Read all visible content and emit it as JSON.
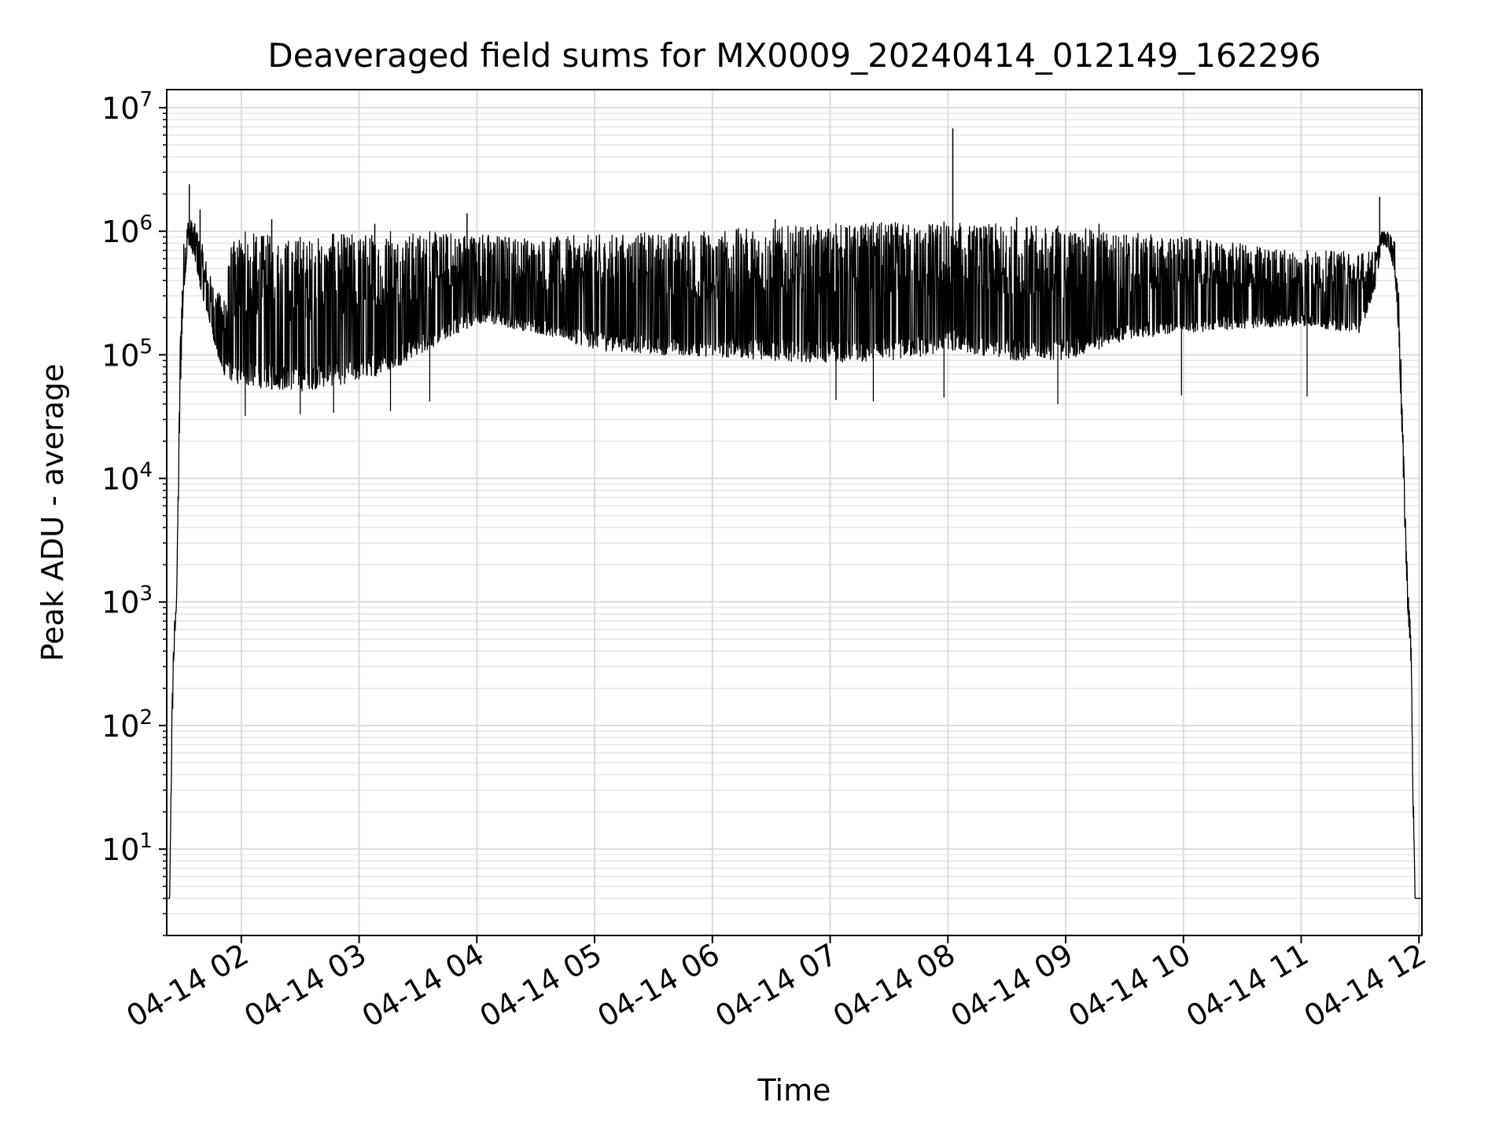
{
  "chart_data": {
    "type": "line",
    "title": "Deaveraged field sums for MX0009_20240414_012149_162296",
    "xlabel": "Time",
    "ylabel": "Peak ADU - average",
    "xlim": [
      "2024-04-14T01:22:00",
      "2024-04-14T12:01:30"
    ],
    "ylim": [
      2,
      14000000
    ],
    "yscale": "log",
    "grid": true,
    "legend": "none",
    "x_ticks": [
      {
        "time": "2024-04-14T02:00:00",
        "label": "04-14 02"
      },
      {
        "time": "2024-04-14T03:00:00",
        "label": "04-14 03"
      },
      {
        "time": "2024-04-14T04:00:00",
        "label": "04-14 04"
      },
      {
        "time": "2024-04-14T05:00:00",
        "label": "04-14 05"
      },
      {
        "time": "2024-04-14T06:00:00",
        "label": "04-14 06"
      },
      {
        "time": "2024-04-14T07:00:00",
        "label": "04-14 07"
      },
      {
        "time": "2024-04-14T08:00:00",
        "label": "04-14 08"
      },
      {
        "time": "2024-04-14T09:00:00",
        "label": "04-14 09"
      },
      {
        "time": "2024-04-14T10:00:00",
        "label": "04-14 10"
      },
      {
        "time": "2024-04-14T11:00:00",
        "label": "04-14 11"
      },
      {
        "time": "2024-04-14T12:00:00",
        "label": "04-14 12"
      }
    ],
    "y_ticks": [
      {
        "value": 10,
        "base": "10",
        "exp": "1"
      },
      {
        "value": 100,
        "base": "10",
        "exp": "2"
      },
      {
        "value": 1000,
        "base": "10",
        "exp": "3"
      },
      {
        "value": 10000,
        "base": "10",
        "exp": "4"
      },
      {
        "value": 100000,
        "base": "10",
        "exp": "5"
      },
      {
        "value": 1000000,
        "base": "10",
        "exp": "6"
      },
      {
        "value": 10000000,
        "base": "10",
        "exp": "7"
      }
    ],
    "series": [
      {
        "color": "#000000",
        "envelope": {
          "time": [
            "2024-04-14T01:22:00",
            "2024-04-14T01:23:30",
            "2024-04-14T01:24:30",
            "2024-04-14T01:25:30",
            "2024-04-14T01:27:00",
            "2024-04-14T01:29:00",
            "2024-04-14T01:30:30",
            "2024-04-14T01:33:00",
            "2024-04-14T01:36:00",
            "2024-04-14T01:40:00",
            "2024-04-14T01:45:00",
            "2024-04-14T01:50:00",
            "2024-04-14T01:55:00",
            "2024-04-14T02:00:00",
            "2024-04-14T02:30:00",
            "2024-04-14T03:00:00",
            "2024-04-14T03:20:00",
            "2024-04-14T04:00:00",
            "2024-04-14T04:30:00",
            "2024-04-14T05:00:00",
            "2024-04-14T05:30:00",
            "2024-04-14T06:00:00",
            "2024-04-14T06:30:00",
            "2024-04-14T07:00:00",
            "2024-04-14T07:30:00",
            "2024-04-14T07:50:00",
            "2024-04-14T08:00:00",
            "2024-04-14T08:30:00",
            "2024-04-14T09:00:00",
            "2024-04-14T09:30:00",
            "2024-04-14T10:00:00",
            "2024-04-14T10:30:00",
            "2024-04-14T11:00:00",
            "2024-04-14T11:30:00",
            "2024-04-14T11:38:00",
            "2024-04-14T11:41:00",
            "2024-04-14T11:45:00",
            "2024-04-14T11:48:00",
            "2024-04-14T11:50:00",
            "2024-04-14T11:52:00",
            "2024-04-14T11:54:00",
            "2024-04-14T11:56:00",
            "2024-04-14T11:57:00",
            "2024-04-14T11:58:00",
            "2024-04-14T12:01:30"
          ],
          "low": [
            4,
            4,
            50,
            300,
            1000,
            50000,
            300000,
            800000,
            600000,
            300000,
            150000,
            70000,
            60000,
            55000,
            50000,
            60000,
            80000,
            180000,
            150000,
            110000,
            100000,
            95000,
            90000,
            85000,
            90000,
            95000,
            110000,
            90000,
            90000,
            130000,
            150000,
            160000,
            170000,
            150000,
            350000,
            800000,
            700000,
            400000,
            100000,
            10000,
            1000,
            300,
            20,
            4,
            4
          ],
          "high": [
            4,
            4,
            100,
            600,
            1000,
            200000,
            800000,
            1300000,
            1200000,
            800000,
            400000,
            300000,
            800000,
            1000000,
            900000,
            1000000,
            1000000,
            1000000,
            900000,
            950000,
            1000000,
            1050000,
            1100000,
            1150000,
            1200000,
            1200000,
            1200000,
            1150000,
            1100000,
            1000000,
            900000,
            800000,
            700000,
            700000,
            700000,
            1000000,
            1000000,
            800000,
            300000,
            20000,
            2000,
            500,
            40,
            4,
            4
          ]
        },
        "spikes": [
          {
            "time": "2024-04-14T01:33:30",
            "value": 2400000
          },
          {
            "time": "2024-04-14T01:39:00",
            "value": 1500000
          },
          {
            "time": "2024-04-14T02:15:30",
            "value": 1250000
          },
          {
            "time": "2024-04-14T03:08:00",
            "value": 1150000
          },
          {
            "time": "2024-04-14T03:55:00",
            "value": 1400000
          },
          {
            "time": "2024-04-14T06:32:00",
            "value": 1250000
          },
          {
            "time": "2024-04-14T08:02:30",
            "value": 6800000
          },
          {
            "time": "2024-04-14T08:35:00",
            "value": 1300000
          },
          {
            "time": "2024-04-14T09:17:00",
            "value": 1150000
          },
          {
            "time": "2024-04-14T11:40:00",
            "value": 1900000
          }
        ],
        "dips": [
          {
            "time": "2024-04-14T02:02:00",
            "value": 32000
          },
          {
            "time": "2024-04-14T02:30:00",
            "value": 33000
          },
          {
            "time": "2024-04-14T02:47:00",
            "value": 34000
          },
          {
            "time": "2024-04-14T03:16:00",
            "value": 35000
          },
          {
            "time": "2024-04-14T03:36:00",
            "value": 42000
          },
          {
            "time": "2024-04-14T07:03:00",
            "value": 43000
          },
          {
            "time": "2024-04-14T07:22:00",
            "value": 42000
          },
          {
            "time": "2024-04-14T07:58:00",
            "value": 45000
          },
          {
            "time": "2024-04-14T08:56:00",
            "value": 40000
          },
          {
            "time": "2024-04-14T09:59:00",
            "value": 47000
          },
          {
            "time": "2024-04-14T11:03:00",
            "value": 46000
          }
        ]
      }
    ]
  }
}
